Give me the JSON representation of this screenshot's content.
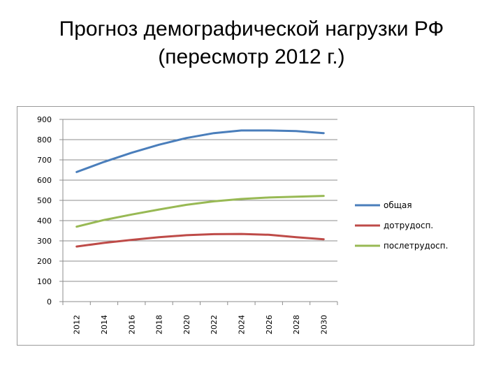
{
  "title": {
    "line1": "Прогноз демографической нагрузки РФ",
    "line2": "(пересмотр 2012 г.)"
  },
  "chart_data": {
    "type": "line",
    "x": [
      "2012",
      "2014",
      "2016",
      "2018",
      "2020",
      "2022",
      "2024",
      "2026",
      "2028",
      "2030"
    ],
    "ylim": [
      0,
      900
    ],
    "yticks": [
      0,
      100,
      200,
      300,
      400,
      500,
      600,
      700,
      800,
      900
    ],
    "grid": true,
    "legend_position": "right",
    "series": [
      {
        "name": "общая",
        "color": "#4a7ebb",
        "values": [
          640,
          690,
          735,
          775,
          808,
          832,
          845,
          845,
          842,
          832
        ]
      },
      {
        "name": "дотрудосп.",
        "color": "#be4b48",
        "values": [
          272,
          290,
          305,
          318,
          328,
          333,
          334,
          330,
          318,
          308
        ]
      },
      {
        "name": "послетрудосп.",
        "color": "#98b954",
        "values": [
          370,
          403,
          430,
          455,
          478,
          495,
          507,
          514,
          518,
          522
        ]
      }
    ]
  }
}
